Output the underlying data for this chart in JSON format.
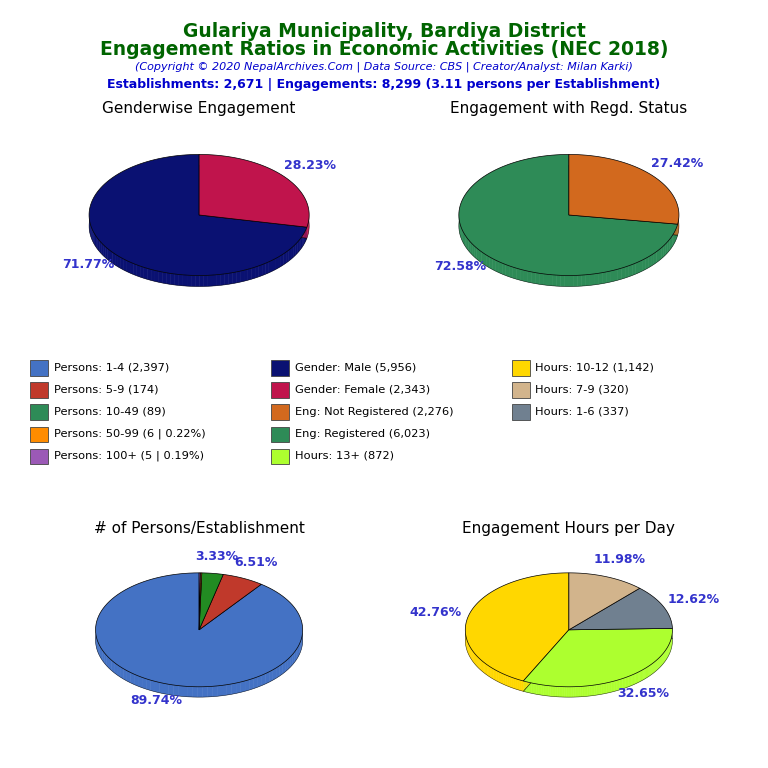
{
  "title_line1": "Gulariya Municipality, Bardiya District",
  "title_line2": "Engagement Ratios in Economic Activities (NEC 2018)",
  "subtitle": "(Copyright © 2020 NepalArchives.Com | Data Source: CBS | Creator/Analyst: Milan Karki)",
  "stats": "Establishments: 2,671 | Engagements: 8,299 (3.11 persons per Establishment)",
  "title_color": "#006400",
  "subtitle_color": "#0000CD",
  "stats_color": "#0000CD",
  "gender_title": "Genderwise Engagement",
  "gender_values": [
    71.77,
    28.23
  ],
  "gender_colors": [
    "#0a1172",
    "#c0144c"
  ],
  "gender_labels": [
    "71.77%",
    "28.23%"
  ],
  "regd_title": "Engagement with Regd. Status",
  "regd_values": [
    72.58,
    27.42
  ],
  "regd_colors": [
    "#2e8b57",
    "#d2691e"
  ],
  "regd_labels": [
    "72.58%",
    "27.42%"
  ],
  "persons_title": "# of Persons/Establishment",
  "persons_values": [
    89.74,
    6.51,
    3.33,
    0.22,
    0.19
  ],
  "persons_colors": [
    "#4472c4",
    "#c0392b",
    "#228b22",
    "#ff8c00",
    "#9b59b6"
  ],
  "persons_labels": [
    "89.74%",
    "6.51%",
    "3.33%",
    "",
    ""
  ],
  "hours_title": "Engagement Hours per Day",
  "hours_values": [
    42.76,
    32.65,
    12.62,
    11.98
  ],
  "hours_colors": [
    "#ffd700",
    "#adff2f",
    "#708090",
    "#d2b48c"
  ],
  "hours_labels": [
    "42.76%",
    "32.65%",
    "12.62%",
    "11.98%"
  ],
  "legend_items": [
    {
      "label": "Persons: 1-4 (2,397)",
      "color": "#4472c4"
    },
    {
      "label": "Persons: 5-9 (174)",
      "color": "#c0392b"
    },
    {
      "label": "Persons: 10-49 (89)",
      "color": "#2e8b57"
    },
    {
      "label": "Persons: 50-99 (6 | 0.22%)",
      "color": "#ff8c00"
    },
    {
      "label": "Persons: 100+ (5 | 0.19%)",
      "color": "#9b59b6"
    },
    {
      "label": "Gender: Male (5,956)",
      "color": "#0a1172"
    },
    {
      "label": "Gender: Female (2,343)",
      "color": "#c0144c"
    },
    {
      "label": "Eng: Not Registered (2,276)",
      "color": "#d2691e"
    },
    {
      "label": "Eng: Registered (6,023)",
      "color": "#2e8b57"
    },
    {
      "label": "Hours: 13+ (872)",
      "color": "#adff2f"
    },
    {
      "label": "Hours: 10-12 (1,142)",
      "color": "#ffd700"
    },
    {
      "label": "Hours: 7-9 (320)",
      "color": "#d2b48c"
    },
    {
      "label": "Hours: 1-6 (337)",
      "color": "#708090"
    }
  ]
}
